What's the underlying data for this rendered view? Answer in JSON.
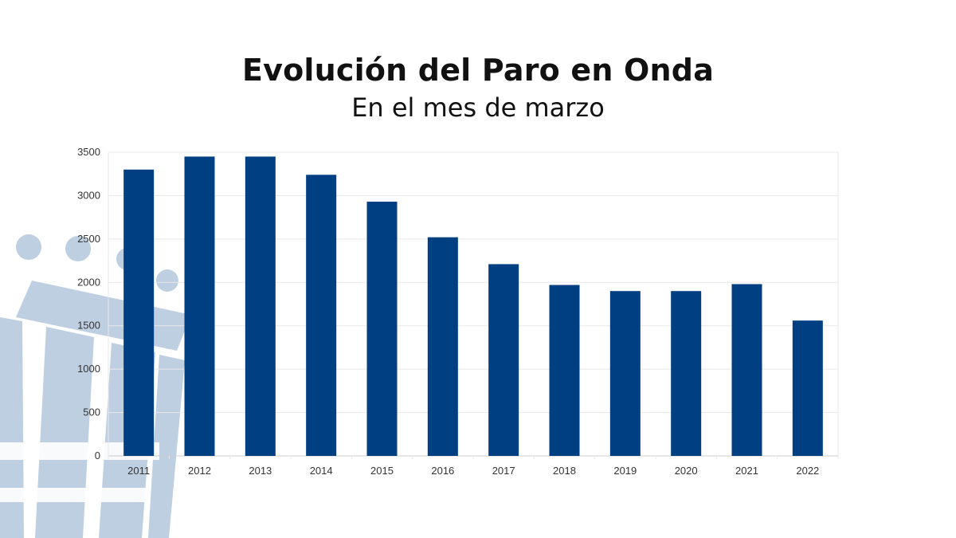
{
  "chart_data": {
    "type": "bar",
    "title": "Evolución del Paro en Onda",
    "subtitle": "En el mes de marzo",
    "xlabel": "",
    "ylabel": "",
    "categories": [
      "2011",
      "2012",
      "2013",
      "2014",
      "2015",
      "2016",
      "2017",
      "2018",
      "2019",
      "2020",
      "2021",
      "2022"
    ],
    "values": [
      3300,
      3450,
      3450,
      3240,
      2930,
      2520,
      2210,
      1970,
      1900,
      1900,
      1980,
      1560
    ],
    "ylim": [
      0,
      3500
    ],
    "yticks": [
      "0",
      "500",
      "1000",
      "1500",
      "2000",
      "2500",
      "3000",
      "3500"
    ],
    "grid": true,
    "legend": "none",
    "colors": {
      "bar": "#003f82",
      "grid": "#e8e8e8",
      "axis": "#cccccc",
      "watermark": "#a9bfd9"
    }
  }
}
